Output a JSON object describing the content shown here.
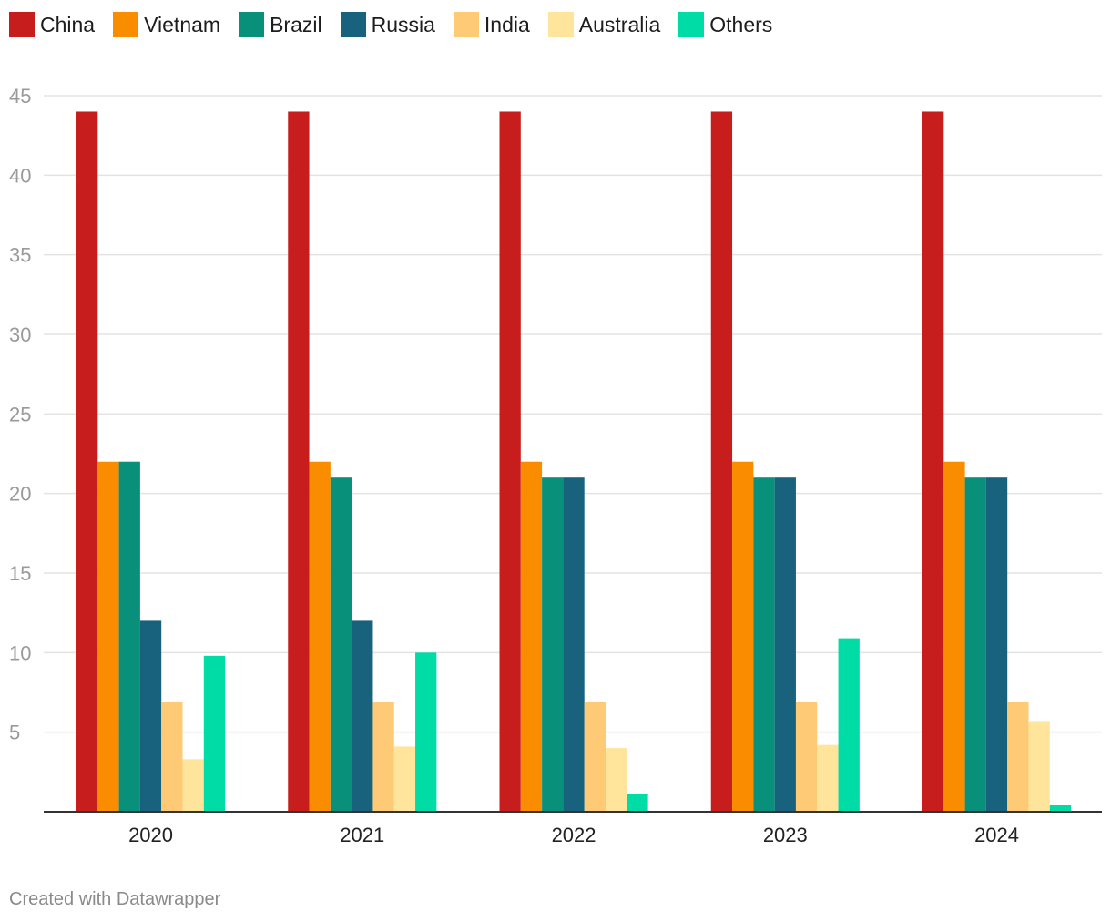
{
  "chart_data": {
    "type": "bar",
    "categories": [
      "2020",
      "2021",
      "2022",
      "2023",
      "2024"
    ],
    "series": [
      {
        "name": "China",
        "color": "#c71e1d",
        "values": [
          44,
          44,
          44,
          44,
          44
        ]
      },
      {
        "name": "Vietnam",
        "color": "#fa8c00",
        "values": [
          22,
          22,
          22,
          22,
          22
        ]
      },
      {
        "name": "Brazil",
        "color": "#09907a",
        "values": [
          22,
          21,
          21,
          21,
          21
        ]
      },
      {
        "name": "Russia",
        "color": "#18627e",
        "values": [
          12,
          12,
          21,
          21,
          21
        ]
      },
      {
        "name": "India",
        "color": "#ffca76",
        "values": [
          6.9,
          6.9,
          6.9,
          6.9,
          6.9
        ]
      },
      {
        "name": "Australia",
        "color": "#ffe59c",
        "values": [
          3.3,
          4.1,
          4.0,
          4.2,
          5.7
        ]
      },
      {
        "name": "Others",
        "color": "#00dca6",
        "values": [
          9.8,
          10,
          1.1,
          10.9,
          0.4
        ]
      }
    ],
    "yticks": [
      5,
      10,
      15,
      20,
      25,
      30,
      35,
      40,
      45
    ],
    "ylim": [
      0,
      45
    ],
    "grid": true,
    "legend": "top-left"
  },
  "footer": "Created with Datawrapper"
}
